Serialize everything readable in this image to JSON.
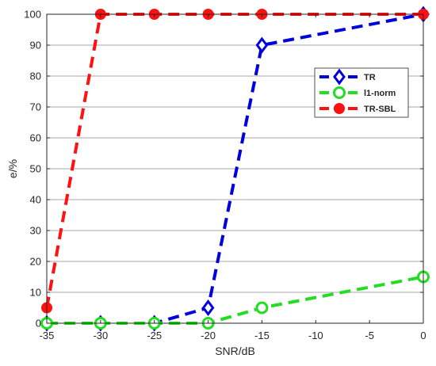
{
  "chart_data": {
    "type": "line",
    "title": "",
    "xlabel": "SNR/dB",
    "ylabel": "e/%",
    "xlim": [
      -35,
      0
    ],
    "ylim": [
      0,
      100
    ],
    "xticks": [
      -35,
      -30,
      -25,
      -20,
      -15,
      -10,
      -5,
      0
    ],
    "yticks": [
      0,
      10,
      20,
      30,
      40,
      50,
      60,
      70,
      80,
      90,
      100
    ],
    "grid": "horizontal-major",
    "legend_position": "right",
    "series": [
      {
        "name": "TR",
        "color": "#0000dd",
        "marker": "diamond-open",
        "x": [
          -35,
          -30,
          -25,
          -20,
          -15,
          0
        ],
        "y": [
          0,
          0,
          0,
          5,
          90,
          100
        ]
      },
      {
        "name": "l1-norm",
        "color": "#22dd22",
        "marker": "circle-open",
        "x": [
          -35,
          -30,
          -25,
          -20,
          -15,
          0
        ],
        "y": [
          0,
          0,
          0,
          0,
          5,
          15
        ]
      },
      {
        "name": "TR-SBL",
        "color": "#ff1111",
        "marker": "circle-filled",
        "x": [
          -35,
          -30,
          -25,
          -20,
          -15,
          0
        ],
        "y": [
          5,
          100,
          100,
          100,
          100,
          100
        ]
      }
    ]
  }
}
